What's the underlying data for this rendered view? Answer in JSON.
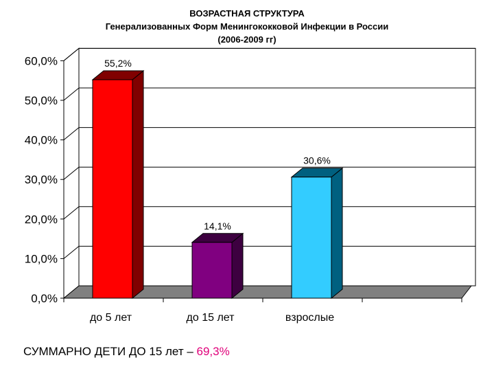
{
  "chart_data": {
    "type": "bar",
    "title_lines": [
      "ВОЗРАСТНАЯ СТРУКТУРА",
      "Генерализованных Форм Менингококковой Инфекции в России",
      "(2006-2009 гг)"
    ],
    "categories": [
      "до 5 лет",
      "до 15 лет",
      "взрослые"
    ],
    "values": [
      55.2,
      14.1,
      30.6
    ],
    "value_labels": [
      "55,2%",
      "14,1%",
      "30,6%"
    ],
    "colors": [
      "#ff0000",
      "#800080",
      "#33ccff"
    ],
    "side_colors": [
      "#800000",
      "#3d0040",
      "#006080"
    ],
    "ylim": [
      0,
      60
    ],
    "yticks": [
      0,
      10,
      20,
      30,
      40,
      50,
      60
    ],
    "ytick_labels": [
      "0,0%",
      "10,0%",
      "20,0%",
      "30,0%",
      "40,0%",
      "50,0%",
      "60,0%"
    ],
    "grid": true,
    "style": "3d-bar"
  },
  "summary": {
    "text": "СУММАРНО ДЕТИ ДО 15 лет – ",
    "value": "69,3%"
  }
}
